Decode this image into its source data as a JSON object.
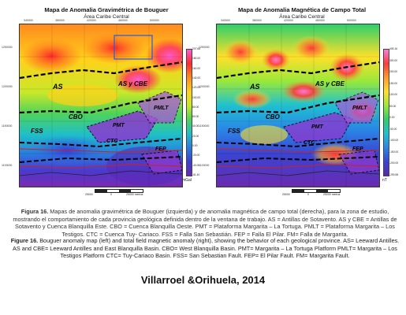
{
  "left_map": {
    "title": "Mapa de Anomalia Gravimétrica de Bouguer",
    "subtitle": "Área Caribe Central",
    "x_ticks": [
      "340000",
      "360000",
      "380000",
      "400000",
      "420000",
      "440000",
      "460000",
      "480000",
      "500000",
      "520000"
    ],
    "y_ticks": [
      "1250000",
      "1200000",
      "1150000",
      "1100000"
    ],
    "colorbar_ticks": [
      "207.68",
      "180.00",
      "160.00",
      "140.00",
      "120.00",
      "100.00",
      "80.00",
      "60.00",
      "40.00",
      "20.00",
      "0.00",
      "-20.00",
      "-40.00",
      "-61.40"
    ],
    "colorbar_unit": "mGal",
    "scale_label": "25000 metros",
    "scale_zero": "0",
    "scale_left": "25000",
    "region_labels": {
      "as": "AS",
      "as_cbe": "AS y CBE",
      "cbo": "CBO",
      "pmt": "PMT",
      "pmlt": "PMLT",
      "ctc": "CTC",
      "fss": "FSS",
      "fep": "FEP"
    }
  },
  "right_map": {
    "title": "Mapa de Anomalia Magnética de Campo Total",
    "subtitle": "Área Caribe Central",
    "x_ticks": [
      "340000",
      "360000",
      "380000",
      "400000",
      "420000",
      "440000",
      "460000",
      "480000",
      "500000",
      "520000"
    ],
    "y_ticks": [
      "1250000",
      "1200000",
      "1150000",
      "1100000"
    ],
    "colorbar_ticks": [
      "405.16",
      "300.00",
      "200.00",
      "150.00",
      "100.00",
      "50.00",
      "0.00",
      "-50.00",
      "-100.00",
      "-150.00",
      "-200.00",
      "-290.55"
    ],
    "colorbar_unit": "nT",
    "scale_label": "25000 metros",
    "scale_zero": "0",
    "scale_left": "25000",
    "region_labels": {
      "as": "AS",
      "as_cbe": "AS y CBE",
      "cbo": "CBO",
      "pmt": "PMT",
      "pmlt": "PMLT",
      "ctc": "CTC",
      "fss": "FSS",
      "fep": "FEP"
    }
  },
  "caption_es": {
    "label": "Figura 16.",
    "text": "Mapas de anomalia gravimétrica de Bouguer (izquierda) y de anomalia magnética de campo total (derecha), para la zona de estudio, mostrando el comportamiento de cada provincia geológica definida dentro de la ventana de trabajo. AS = Antillas de Sotavento. AS y CBE = Antillas de Sotavento y Cuenca Blanquilla Este. CBO = Cuenca Blanquilla Oeste. PMT = Plataforma Margarita – La Tortuga. PMLT = Plataforma Margarita – Los Testigos. CTC = Cuenca Tuy- Cariaco. FSS = Falla San Sebastián. FEP = Falla El Pilar. FM= Falla de Margarita."
  },
  "caption_en": {
    "label": "Figure 16.",
    "text": "Bouguer anomaly map (left) and total field magnetic anomaly (right), showing the behavior of each geological province. AS= Leeward Antilles. AS and CBE= Leeward Antilles and East Blanquilla Basin. CBO= West Blanquilla Basin. PMT= Margarita – La Tortuga Platform PMLT= Margarita – Los Testigos Platform CTC= Tuy-Cariaco Basin. FSS= San Sebastian Fault. FEP= El Pilar Fault. FM= Margarita Fault."
  },
  "credit": "Villarroel &Orihuela, 2014",
  "colors": {
    "gravity_ramp": [
      "#ff5ad2",
      "#ff2a2a",
      "#ff8a1f",
      "#ffd21a",
      "#c8e82a",
      "#4fd35a",
      "#1fbfc9",
      "#2a7be0",
      "#3b3fd0",
      "#6a2ab8"
    ],
    "magnetic_ramp": [
      "#ff7ad8",
      "#ff3a3a",
      "#ff9a2a",
      "#ffe02a",
      "#9ae83a",
      "#2ecf6a",
      "#1fc0d0",
      "#2a86e6",
      "#3a44d2",
      "#5a28a8"
    ]
  }
}
